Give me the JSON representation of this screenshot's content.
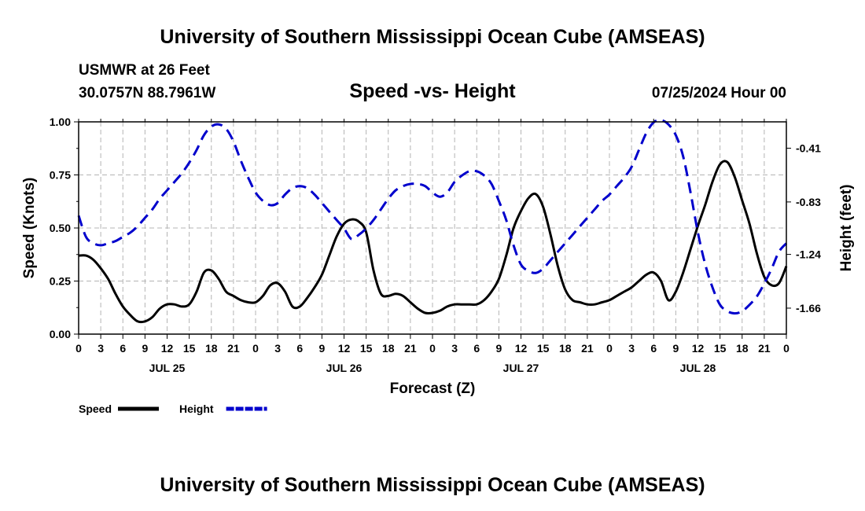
{
  "page": {
    "title": "University of Southern Mississippi Ocean Cube (AMSEAS)",
    "footer_title": "University of Southern Mississippi Ocean Cube (AMSEAS)"
  },
  "chart_data": {
    "type": "line",
    "title": "Speed -vs- Height",
    "station": "USMWR at 26 Feet",
    "location": "30.0757N  88.7961W",
    "datetime": "07/25/2024 Hour 00",
    "xlabel": "Forecast (Z)",
    "ylabel": "Speed (Knots)",
    "y2label": "Height (feet)",
    "xlim": [
      0,
      96
    ],
    "ylim": [
      0,
      1
    ],
    "y2lim": [
      -1.863,
      -0.204
    ],
    "grid": true,
    "x_ticks": [
      0,
      3,
      6,
      9,
      12,
      15,
      18,
      21,
      24,
      27,
      30,
      33,
      36,
      39,
      42,
      45,
      48,
      51,
      54,
      57,
      60,
      63,
      66,
      69,
      72,
      75,
      78,
      81,
      84,
      87,
      90,
      93,
      96
    ],
    "x_tick_labels": [
      "0",
      "3",
      "6",
      "9",
      "12",
      "15",
      "18",
      "21",
      "0",
      "3",
      "6",
      "9",
      "12",
      "15",
      "18",
      "21",
      "0",
      "3",
      "6",
      "9",
      "12",
      "15",
      "18",
      "21",
      "0",
      "3",
      "6",
      "9",
      "12",
      "15",
      "18",
      "21",
      "0"
    ],
    "day_labels": [
      {
        "x": 12,
        "label": "JUL 25"
      },
      {
        "x": 36,
        "label": "JUL 26"
      },
      {
        "x": 60,
        "label": "JUL 27"
      },
      {
        "x": 84,
        "label": "JUL 28"
      }
    ],
    "y_ticks": [
      0,
      0.25,
      0.5,
      0.75,
      1.0
    ],
    "y_tick_labels": [
      "0.00",
      "0.25",
      "0.50",
      "0.75",
      "1.00"
    ],
    "y2_ticks": [
      -1.66,
      -1.24,
      -0.83,
      -0.41
    ],
    "y2_tick_labels": [
      "-1.66",
      "-1.24",
      "-0.83",
      "-0.41"
    ],
    "series": [
      {
        "name": "Speed",
        "axis": "left",
        "color": "#000000",
        "style": "solid",
        "x": [
          0,
          1,
          2,
          3,
          4,
          5,
          6,
          7,
          8,
          9,
          10,
          11,
          12,
          13,
          14,
          15,
          16,
          17,
          18,
          19,
          20,
          21,
          22,
          23,
          24,
          25,
          26,
          27,
          28,
          29,
          30,
          31,
          32,
          33,
          34,
          35,
          36,
          37,
          38,
          39,
          40,
          41,
          42,
          43,
          44,
          45,
          46,
          47,
          48,
          49,
          50,
          51,
          52,
          53,
          54,
          55,
          56,
          57,
          58,
          59,
          60,
          61,
          62,
          63,
          64,
          65,
          66,
          67,
          68,
          69,
          70,
          71,
          72,
          73,
          74,
          75,
          76,
          77,
          78,
          79,
          80,
          81,
          82,
          83,
          84,
          85,
          86,
          87,
          88,
          89,
          90,
          91,
          92,
          93,
          94,
          95,
          96
        ],
        "values": [
          0.37,
          0.37,
          0.35,
          0.31,
          0.26,
          0.19,
          0.13,
          0.09,
          0.06,
          0.06,
          0.08,
          0.12,
          0.14,
          0.14,
          0.13,
          0.14,
          0.2,
          0.29,
          0.3,
          0.26,
          0.2,
          0.18,
          0.16,
          0.15,
          0.15,
          0.18,
          0.23,
          0.24,
          0.2,
          0.13,
          0.13,
          0.17,
          0.22,
          0.28,
          0.37,
          0.46,
          0.52,
          0.54,
          0.53,
          0.48,
          0.3,
          0.19,
          0.18,
          0.19,
          0.18,
          0.15,
          0.12,
          0.1,
          0.1,
          0.11,
          0.13,
          0.14,
          0.14,
          0.14,
          0.14,
          0.16,
          0.2,
          0.26,
          0.37,
          0.5,
          0.58,
          0.64,
          0.66,
          0.6,
          0.47,
          0.32,
          0.21,
          0.16,
          0.15,
          0.14,
          0.14,
          0.15,
          0.16,
          0.18,
          0.2,
          0.22,
          0.25,
          0.28,
          0.29,
          0.25,
          0.16,
          0.2,
          0.29,
          0.4,
          0.51,
          0.61,
          0.72,
          0.8,
          0.81,
          0.74,
          0.63,
          0.52,
          0.38,
          0.27,
          0.23,
          0.24,
          0.32
        ]
      },
      {
        "name": "Height",
        "axis": "right",
        "color": "#0000cc",
        "style": "dashed",
        "x": [
          0,
          1,
          2,
          3,
          4,
          5,
          6,
          7,
          8,
          9,
          10,
          11,
          12,
          13,
          14,
          15,
          16,
          17,
          18,
          19,
          20,
          21,
          22,
          23,
          24,
          25,
          26,
          27,
          28,
          29,
          30,
          31,
          32,
          33,
          34,
          35,
          36,
          37,
          38,
          39,
          40,
          41,
          42,
          43,
          44,
          45,
          46,
          47,
          48,
          49,
          50,
          51,
          52,
          53,
          54,
          55,
          56,
          57,
          58,
          59,
          60,
          61,
          62,
          63,
          64,
          65,
          66,
          67,
          68,
          69,
          70,
          71,
          72,
          73,
          74,
          75,
          76,
          77,
          78,
          79,
          80,
          81,
          82,
          83,
          84,
          85,
          86,
          87,
          88,
          89,
          90,
          91,
          92,
          93,
          94,
          95,
          96
        ],
        "values": [
          -0.937,
          -1.103,
          -1.153,
          -1.169,
          -1.153,
          -1.136,
          -1.103,
          -1.07,
          -1.02,
          -0.954,
          -0.888,
          -0.805,
          -0.739,
          -0.673,
          -0.606,
          -0.523,
          -0.424,
          -0.308,
          -0.241,
          -0.224,
          -0.258,
          -0.357,
          -0.507,
          -0.64,
          -0.756,
          -0.822,
          -0.855,
          -0.839,
          -0.772,
          -0.722,
          -0.706,
          -0.722,
          -0.772,
          -0.838,
          -0.905,
          -0.971,
          -1.037,
          -1.12,
          -1.087,
          -1.037,
          -0.971,
          -0.888,
          -0.805,
          -0.739,
          -0.706,
          -0.689,
          -0.689,
          -0.706,
          -0.756,
          -0.789,
          -0.756,
          -0.673,
          -0.623,
          -0.59,
          -0.59,
          -0.623,
          -0.689,
          -0.822,
          -0.971,
          -1.17,
          -1.319,
          -1.368,
          -1.385,
          -1.352,
          -1.286,
          -1.219,
          -1.153,
          -1.087,
          -1.02,
          -0.954,
          -0.888,
          -0.822,
          -0.772,
          -0.706,
          -0.64,
          -0.557,
          -0.424,
          -0.291,
          -0.208,
          -0.191,
          -0.224,
          -0.308,
          -0.474,
          -0.756,
          -1.07,
          -1.319,
          -1.501,
          -1.634,
          -1.684,
          -1.701,
          -1.684,
          -1.634,
          -1.568,
          -1.468,
          -1.352,
          -1.219,
          -1.153
        ]
      }
    ],
    "legend": [
      {
        "label": "Speed",
        "color": "#000000",
        "style": "solid"
      },
      {
        "label": "Height",
        "color": "#0000cc",
        "style": "dashed"
      }
    ]
  }
}
